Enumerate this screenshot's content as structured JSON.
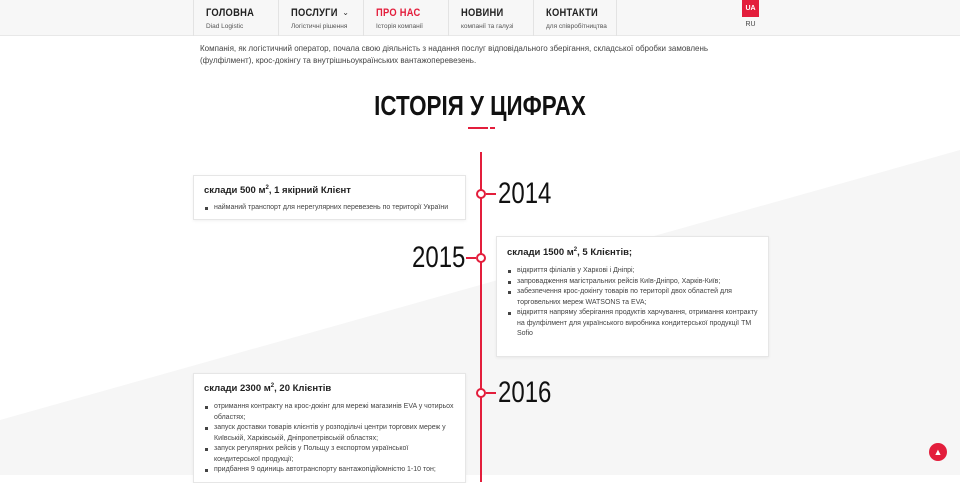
{
  "nav": {
    "items": [
      {
        "title": "ГОЛОВНА",
        "sub": "Diad Logistic"
      },
      {
        "title": "ПОСЛУГИ",
        "sub": "Логістичні рішення"
      },
      {
        "title": "ПРО НАС",
        "sub": "Історія компанії"
      },
      {
        "title": "НОВИНИ",
        "sub": "компанії та галузі"
      },
      {
        "title": "КОНТАКТИ",
        "sub": "для співробітництва"
      }
    ],
    "lang_active": "UA",
    "lang_other": "RU"
  },
  "intro": "Компанія, як логістичний оператор, почала свою діяльність з надання послуг відповідального зберігання, складської обробки замовлень (фулфілмент), крос-докінгу та внутрішньоукраїнських вантажоперевезень.",
  "title": "ІСТОРІЯ У ЦИФРАХ",
  "timeline": [
    {
      "year": "2014",
      "head": "склади 500 м",
      "sup": "2",
      "tail": ", 1 якірний Клієнт",
      "items": [
        "найманий транспорт для нерегулярних перевезень по території України"
      ]
    },
    {
      "year": "2015",
      "head": "склади 1500 м",
      "sup": "2",
      "tail": ", 5 Клієнтів;",
      "items": [
        "відкриття філіалів у Харкові і Дніпрі;",
        "запровадження магістральних рейсів Київ-Дніпро, Харків-Київ;",
        "забезпечення крос-докінгу товарів по території двох областей для торговельних мереж WATSONS та EVA;",
        "відкриття напряму зберігання продуктів харчування, отримання контракту на фулфілмент для українського виробника кондитерської продукції ТМ Sofio"
      ]
    },
    {
      "year": "2016",
      "head": "склади 2300 м",
      "sup": "2",
      "tail": ", 20 Клієнтів",
      "items": [
        "отримання контракту на крос-докінг для мережі магазинів EVA у чотирьох областях;",
        "запуск доставки товарів клієнтів у розподільчі центри торгових мереж у Київській, Харківській, Дніпропетрівській областях;",
        "запуск регулярних рейсів у Польщу з експортом української кондитерської продукції;",
        "придбання 9 одиниць автотранспорту вантажопідйомністю 1-10 тон;"
      ]
    }
  ],
  "colors": {
    "accent": "#e31e3c"
  },
  "scroll_top_icon": "chevron-up-icon"
}
